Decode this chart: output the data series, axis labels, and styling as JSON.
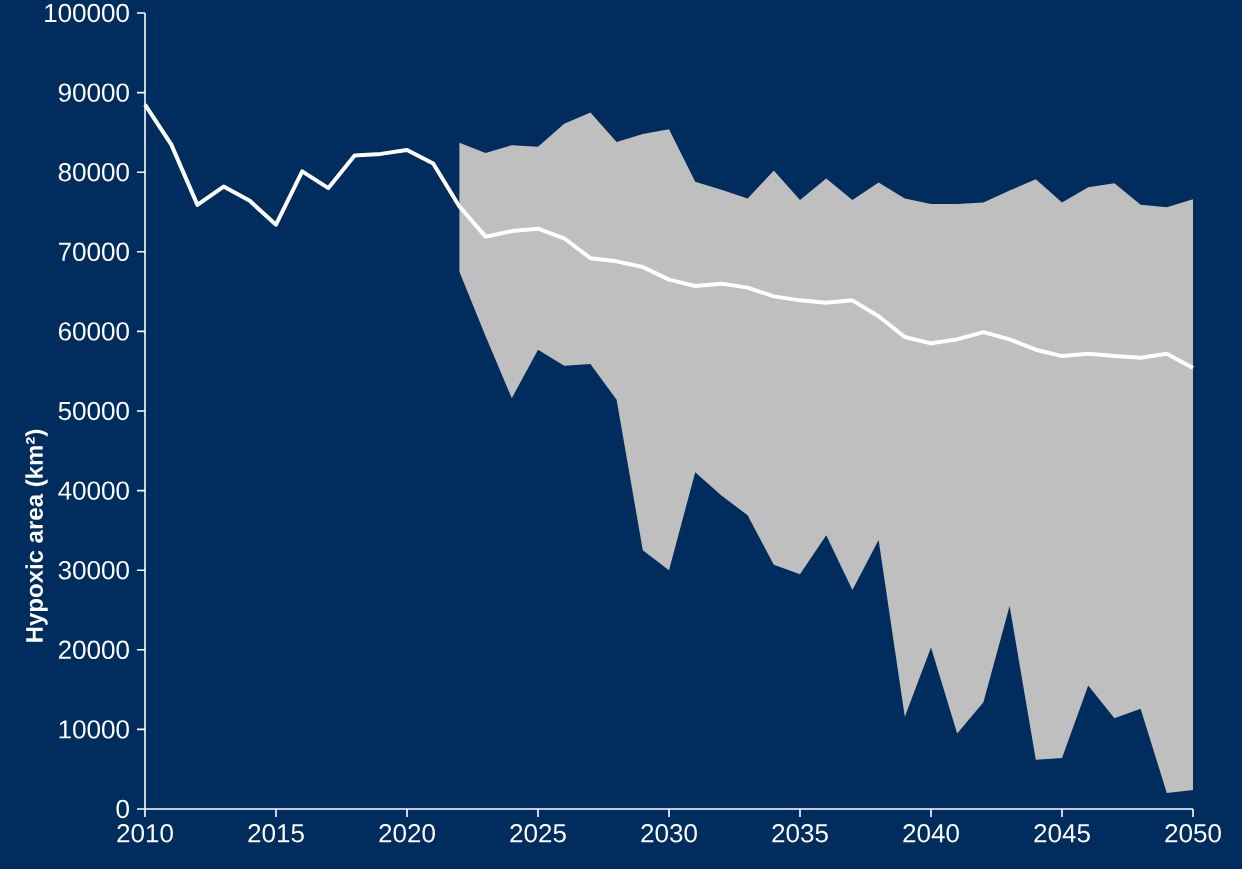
{
  "chart_data": {
    "type": "line",
    "ylabel": "Hypoxic area (km²)",
    "x": [
      2010,
      2011,
      2012,
      2013,
      2014,
      2015,
      2016,
      2017,
      2018,
      2019,
      2020,
      2021,
      2022,
      2023,
      2024,
      2025,
      2026,
      2027,
      2028,
      2029,
      2030,
      2031,
      2032,
      2033,
      2034,
      2035,
      2036,
      2037,
      2038,
      2039,
      2040,
      2041,
      2042,
      2043,
      2044,
      2045,
      2046,
      2047,
      2048,
      2049,
      2050
    ],
    "series": [
      {
        "color": "#ffffff",
        "values": [
          88500,
          83500,
          75900,
          78200,
          76400,
          73400,
          80100,
          78000,
          82100,
          82300,
          82800,
          81100,
          75700,
          71900,
          72600,
          72900,
          71700,
          69200,
          68800,
          68100,
          66500,
          65700,
          66000,
          65500,
          64400,
          63900,
          63600,
          63900,
          61900,
          59300,
          58500,
          59000,
          59900,
          59000,
          57700,
          56900,
          57200,
          56900,
          56700,
          57200,
          55400
        ],
        "lower": [
          null,
          null,
          null,
          null,
          null,
          null,
          null,
          null,
          null,
          null,
          null,
          null,
          67500,
          59400,
          51600,
          57700,
          55700,
          55900,
          51400,
          32500,
          30000,
          42300,
          39400,
          36900,
          30700,
          29500,
          34400,
          27500,
          33800,
          11600,
          20300,
          9500,
          13400,
          25500,
          6200,
          6400,
          15500,
          11400,
          12600,
          2000,
          2400
        ],
        "upper": [
          null,
          null,
          null,
          null,
          null,
          null,
          null,
          null,
          null,
          null,
          null,
          null,
          83700,
          82400,
          83400,
          83200,
          86100,
          87500,
          83800,
          84800,
          85400,
          78800,
          77800,
          76700,
          80200,
          76500,
          79200,
          76500,
          78700,
          76700,
          76000,
          76000,
          76200,
          77700,
          79100,
          76200,
          78100,
          78600,
          75900,
          75600,
          76600
        ]
      }
    ],
    "xlim": [
      2010,
      2050
    ],
    "ylim": [
      0,
      100000
    ],
    "xticks": [
      2010,
      2015,
      2020,
      2025,
      2030,
      2035,
      2040,
      2045,
      2050
    ],
    "yticks": [
      0,
      10000,
      20000,
      30000,
      40000,
      50000,
      60000,
      70000,
      80000,
      90000,
      100000
    ]
  }
}
